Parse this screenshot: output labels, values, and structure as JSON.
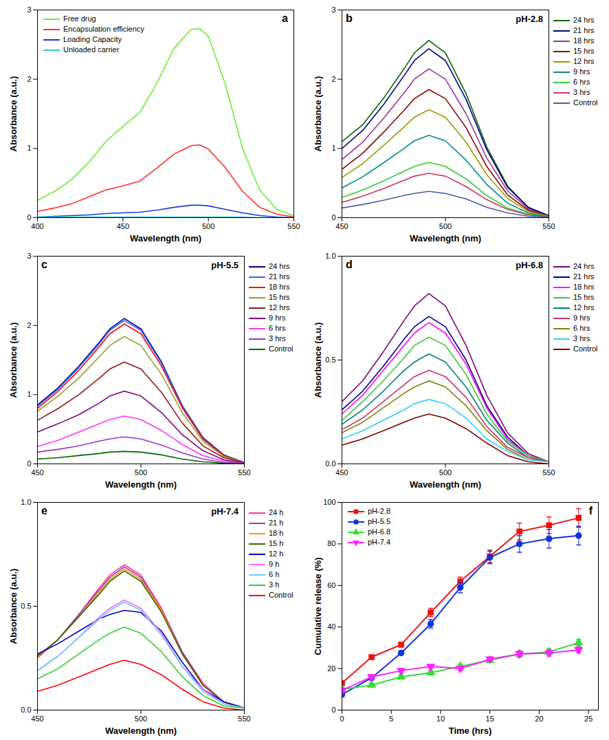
{
  "chart_data": [
    {
      "type": "line",
      "annotations": [
        "a"
      ],
      "xlabel": "Wavelength (nm)",
      "ylabel": "Absorbance (a.u.)",
      "x": [
        400,
        410,
        420,
        430,
        440,
        450,
        460,
        470,
        480,
        490,
        495,
        500,
        510,
        520,
        530,
        540,
        550
      ],
      "xlim": [
        400,
        550
      ],
      "xticks": [
        400,
        450,
        500,
        550
      ],
      "ylim": [
        0,
        3
      ],
      "yticks": [
        0,
        1,
        2,
        3
      ],
      "legend": "top-left",
      "series": [
        {
          "name": "Free drug",
          "color": "#66ee33",
          "values": [
            0.25,
            0.38,
            0.55,
            0.8,
            1.1,
            1.32,
            1.52,
            1.95,
            2.45,
            2.72,
            2.73,
            2.62,
            1.92,
            1.0,
            0.4,
            0.12,
            0.03
          ]
        },
        {
          "name": "Encapsulation efficiency",
          "color": "#ff3030",
          "values": [
            0.09,
            0.14,
            0.2,
            0.3,
            0.4,
            0.46,
            0.53,
            0.72,
            0.92,
            1.04,
            1.05,
            0.99,
            0.72,
            0.38,
            0.15,
            0.05,
            0.01
          ]
        },
        {
          "name": "Loading Capacity",
          "color": "#2233dd",
          "values": [
            0.01,
            0.02,
            0.03,
            0.04,
            0.06,
            0.07,
            0.08,
            0.11,
            0.15,
            0.18,
            0.18,
            0.17,
            0.12,
            0.07,
            0.03,
            0.01,
            0.0
          ]
        },
        {
          "name": "Unloaded carrier",
          "color": "#33cccc",
          "values": [
            0.01,
            0.01,
            0.01,
            0.01,
            0.01,
            0.01,
            0.01,
            0.01,
            0.01,
            0.01,
            0.01,
            0.01,
            0.01,
            0.01,
            0.0,
            0.0,
            0.0
          ]
        }
      ]
    },
    {
      "type": "line",
      "annotations": [
        "b"
      ],
      "title": "pH-2.8",
      "xlabel": "Wavelength (nm)",
      "ylabel": "Absorbance (a.u.)",
      "x": [
        450,
        460,
        470,
        480,
        485,
        492,
        500,
        510,
        520,
        530,
        540,
        550
      ],
      "xlim": [
        450,
        550
      ],
      "xticks": [
        450,
        500,
        550
      ],
      "ylim": [
        0,
        3
      ],
      "yticks": [
        0,
        1,
        2,
        3
      ],
      "legend": "right",
      "series": [
        {
          "name": "24 hrs",
          "color": "#006400",
          "values": [
            1.1,
            1.34,
            1.72,
            2.15,
            2.38,
            2.56,
            2.38,
            1.79,
            1.02,
            0.46,
            0.15,
            0.03
          ]
        },
        {
          "name": "21 hrs",
          "color": "#000080",
          "values": [
            1.0,
            1.26,
            1.63,
            2.05,
            2.27,
            2.44,
            2.27,
            1.71,
            0.98,
            0.44,
            0.15,
            0.03
          ]
        },
        {
          "name": "18 hrs",
          "color": "#993399",
          "values": [
            0.84,
            1.09,
            1.43,
            1.8,
            2.0,
            2.15,
            2.0,
            1.5,
            0.86,
            0.39,
            0.13,
            0.02
          ]
        },
        {
          "name": "15 hrs",
          "color": "#8b0000",
          "values": [
            0.7,
            0.93,
            1.23,
            1.55,
            1.72,
            1.85,
            1.72,
            1.3,
            0.74,
            0.33,
            0.11,
            0.02
          ]
        },
        {
          "name": "12 hrs",
          "color": "#999900",
          "values": [
            0.58,
            0.78,
            1.04,
            1.31,
            1.45,
            1.56,
            1.45,
            1.09,
            0.62,
            0.28,
            0.09,
            0.02
          ]
        },
        {
          "name": "9 hrs",
          "color": "#008b8b",
          "values": [
            0.43,
            0.59,
            0.79,
            1.0,
            1.11,
            1.19,
            1.11,
            0.83,
            0.48,
            0.21,
            0.07,
            0.01
          ]
        },
        {
          "name": "6 hrs",
          "color": "#33cc33",
          "values": [
            0.29,
            0.4,
            0.53,
            0.67,
            0.74,
            0.8,
            0.74,
            0.56,
            0.32,
            0.14,
            0.05,
            0.01
          ]
        },
        {
          "name": "3 hrs",
          "color": "#cc3366",
          "values": [
            0.22,
            0.31,
            0.42,
            0.54,
            0.6,
            0.64,
            0.6,
            0.45,
            0.26,
            0.12,
            0.04,
            0.01
          ]
        },
        {
          "name": "Control",
          "color": "#4b5ea8",
          "values": [
            0.14,
            0.19,
            0.25,
            0.32,
            0.35,
            0.38,
            0.35,
            0.27,
            0.15,
            0.07,
            0.02,
            0.01
          ]
        }
      ]
    },
    {
      "type": "line",
      "annotations": [
        "c"
      ],
      "title": "pH-5.5",
      "xlabel": "Wavelength (nm)",
      "ylabel": "Absorbance (a.u.)",
      "x": [
        450,
        460,
        470,
        480,
        485,
        492,
        500,
        510,
        520,
        530,
        540,
        550
      ],
      "xlim": [
        450,
        550
      ],
      "xticks": [
        450,
        500,
        550
      ],
      "ylim": [
        0,
        3
      ],
      "yticks": [
        0,
        1,
        2,
        3
      ],
      "legend": "right",
      "series": [
        {
          "name": "24 hrs",
          "color": "#000080",
          "values": [
            0.85,
            1.1,
            1.41,
            1.76,
            1.95,
            2.1,
            1.95,
            1.47,
            0.84,
            0.38,
            0.13,
            0.02
          ]
        },
        {
          "name": "21 hrs",
          "color": "#3366ff",
          "values": [
            0.83,
            1.08,
            1.39,
            1.74,
            1.93,
            2.07,
            1.93,
            1.45,
            0.83,
            0.37,
            0.12,
            0.02
          ]
        },
        {
          "name": "18 hrs",
          "color": "#ff0000",
          "values": [
            0.8,
            1.05,
            1.35,
            1.7,
            1.88,
            2.02,
            1.88,
            1.41,
            0.81,
            0.36,
            0.12,
            0.02
          ]
        },
        {
          "name": "15 hrs",
          "color": "#999933",
          "values": [
            0.76,
            0.98,
            1.24,
            1.55,
            1.71,
            1.84,
            1.71,
            1.29,
            0.74,
            0.33,
            0.11,
            0.02
          ]
        },
        {
          "name": "12 hrs",
          "color": "#8b1a1a",
          "values": [
            0.63,
            0.8,
            1.0,
            1.24,
            1.37,
            1.47,
            1.37,
            1.03,
            0.59,
            0.26,
            0.09,
            0.02
          ]
        },
        {
          "name": "9 hrs",
          "color": "#800080",
          "values": [
            0.46,
            0.58,
            0.71,
            0.88,
            0.98,
            1.05,
            0.98,
            0.74,
            0.42,
            0.19,
            0.06,
            0.01
          ]
        },
        {
          "name": "6 hrs",
          "color": "#ff33ff",
          "values": [
            0.25,
            0.34,
            0.46,
            0.58,
            0.64,
            0.69,
            0.64,
            0.48,
            0.28,
            0.12,
            0.04,
            0.01
          ]
        },
        {
          "name": "3 hrs",
          "color": "#9933cc",
          "values": [
            0.17,
            0.21,
            0.26,
            0.33,
            0.36,
            0.39,
            0.36,
            0.27,
            0.16,
            0.07,
            0.02,
            0.01
          ]
        },
        {
          "name": "Control",
          "color": "#006400",
          "values": [
            0.07,
            0.09,
            0.12,
            0.15,
            0.17,
            0.18,
            0.17,
            0.13,
            0.07,
            0.03,
            0.01,
            0.0
          ]
        }
      ]
    },
    {
      "type": "line",
      "annotations": [
        "d"
      ],
      "title": "pH-6.8",
      "xlabel": "Wavelength (nm)",
      "ylabel": "Absorbance (a.u.)",
      "x": [
        450,
        460,
        470,
        480,
        485,
        492,
        500,
        510,
        520,
        530,
        540,
        550
      ],
      "xlim": [
        450,
        550
      ],
      "xticks": [
        450,
        500,
        550
      ],
      "ylim": [
        0,
        1
      ],
      "yticks": [
        {
          "value": 0,
          "label": "0.0"
        },
        {
          "value": 0.5,
          "label": "0.5"
        },
        {
          "value": 1,
          "label": "1.0"
        }
      ],
      "legend": "right",
      "series": [
        {
          "name": "24 hrs",
          "color": "#800080",
          "values": [
            0.3,
            0.4,
            0.54,
            0.69,
            0.76,
            0.82,
            0.76,
            0.57,
            0.33,
            0.15,
            0.05,
            0.01
          ]
        },
        {
          "name": "21 hrs",
          "color": "#000080",
          "values": [
            0.26,
            0.35,
            0.47,
            0.6,
            0.66,
            0.71,
            0.66,
            0.5,
            0.28,
            0.13,
            0.04,
            0.01
          ]
        },
        {
          "name": "18 hrs",
          "color": "#ff00ff",
          "values": [
            0.24,
            0.33,
            0.45,
            0.57,
            0.63,
            0.68,
            0.63,
            0.48,
            0.27,
            0.12,
            0.04,
            0.01
          ]
        },
        {
          "name": "15 hrs",
          "color": "#33cc33",
          "values": [
            0.21,
            0.3,
            0.4,
            0.51,
            0.57,
            0.61,
            0.57,
            0.43,
            0.24,
            0.11,
            0.04,
            0.01
          ]
        },
        {
          "name": "12 hrs",
          "color": "#008080",
          "values": [
            0.19,
            0.26,
            0.35,
            0.45,
            0.49,
            0.53,
            0.49,
            0.37,
            0.21,
            0.1,
            0.03,
            0.01
          ]
        },
        {
          "name": "9 hrs",
          "color": "#cc3366",
          "values": [
            0.165,
            0.22,
            0.3,
            0.38,
            0.42,
            0.45,
            0.42,
            0.32,
            0.18,
            0.08,
            0.03,
            0.01
          ]
        },
        {
          "name": "6 hrs",
          "color": "#808000",
          "values": [
            0.15,
            0.2,
            0.27,
            0.34,
            0.37,
            0.4,
            0.37,
            0.28,
            0.16,
            0.07,
            0.02,
            0.01
          ]
        },
        {
          "name": "3 hrs",
          "color": "#33ccff",
          "values": [
            0.12,
            0.16,
            0.21,
            0.26,
            0.29,
            0.31,
            0.29,
            0.22,
            0.12,
            0.06,
            0.02,
            0.01
          ]
        },
        {
          "name": "Control",
          "color": "#800000",
          "values": [
            0.09,
            0.12,
            0.16,
            0.2,
            0.22,
            0.24,
            0.22,
            0.17,
            0.1,
            0.04,
            0.01,
            0.0
          ]
        }
      ]
    },
    {
      "type": "line",
      "annotations": [
        "e"
      ],
      "title": "pH-7.4",
      "xlabel": "Wavelength (nm)",
      "ylabel": "Absorbance (a.u.)",
      "x": [
        450,
        460,
        470,
        480,
        485,
        492,
        500,
        510,
        520,
        530,
        540,
        550
      ],
      "xlim": [
        450,
        550
      ],
      "xticks": [
        450,
        500,
        550
      ],
      "ylim": [
        0,
        1
      ],
      "yticks": [
        {
          "value": 0,
          "label": "0.0"
        },
        {
          "value": 0.5,
          "label": "0.5"
        },
        {
          "value": 1,
          "label": "1.0"
        }
      ],
      "legend": "right",
      "series": [
        {
          "name": "24 h",
          "color": "#ff3399",
          "values": [
            0.25,
            0.34,
            0.46,
            0.59,
            0.65,
            0.7,
            0.65,
            0.49,
            0.28,
            0.13,
            0.04,
            0.01
          ]
        },
        {
          "name": "21 h",
          "color": "#9933cc",
          "values": [
            0.255,
            0.34,
            0.46,
            0.58,
            0.64,
            0.69,
            0.64,
            0.48,
            0.28,
            0.12,
            0.04,
            0.01
          ]
        },
        {
          "name": "18 h",
          "color": "#ff9900",
          "values": [
            0.255,
            0.34,
            0.45,
            0.57,
            0.63,
            0.68,
            0.63,
            0.48,
            0.27,
            0.12,
            0.04,
            0.01
          ]
        },
        {
          "name": "15 h",
          "color": "#336600",
          "values": [
            0.26,
            0.34,
            0.45,
            0.56,
            0.62,
            0.67,
            0.62,
            0.47,
            0.27,
            0.12,
            0.04,
            0.01
          ]
        },
        {
          "name": "12 h",
          "color": "#0000cc",
          "values": [
            0.27,
            0.32,
            0.38,
            0.44,
            0.46,
            0.48,
            0.47,
            0.38,
            0.23,
            0.1,
            0.04,
            0.01
          ]
        },
        {
          "name": "9 h",
          "color": "#ff66ff",
          "values": [
            0.19,
            0.26,
            0.35,
            0.45,
            0.49,
            0.53,
            0.49,
            0.37,
            0.21,
            0.1,
            0.03,
            0.01
          ]
        },
        {
          "name": "6 h",
          "color": "#66ccff",
          "values": [
            0.19,
            0.26,
            0.35,
            0.44,
            0.48,
            0.52,
            0.48,
            0.36,
            0.21,
            0.09,
            0.03,
            0.01
          ]
        },
        {
          "name": "3 h",
          "color": "#33cc33",
          "values": [
            0.15,
            0.2,
            0.27,
            0.34,
            0.37,
            0.4,
            0.37,
            0.28,
            0.16,
            0.07,
            0.02,
            0.01
          ]
        },
        {
          "name": "Control",
          "color": "#ff0000",
          "values": [
            0.09,
            0.12,
            0.16,
            0.2,
            0.22,
            0.24,
            0.22,
            0.17,
            0.1,
            0.04,
            0.01,
            0.0
          ]
        }
      ]
    },
    {
      "type": "line",
      "annotations": [
        "f"
      ],
      "xlabel": "Time (hrs)",
      "ylabel": "Cumulative release (%)",
      "x": [
        0,
        3,
        6,
        9,
        12,
        15,
        18,
        21,
        24
      ],
      "xlim": [
        0,
        26
      ],
      "xticks": [
        0,
        5,
        10,
        15,
        20,
        25
      ],
      "ylim": [
        0,
        100
      ],
      "yticks": [
        0,
        20,
        40,
        60,
        80,
        100
      ],
      "legend": "top-left",
      "series": [
        {
          "name": "pH-2.8",
          "color": "#ee1111",
          "marker": "square",
          "values": [
            13,
            25.5,
            31.5,
            47,
            62,
            74,
            86,
            89,
            92.5
          ],
          "errors": [
            1,
            1,
            1,
            2,
            2,
            3,
            4,
            4,
            4.5
          ]
        },
        {
          "name": "pH-5.5",
          "color": "#1133dd",
          "marker": "circle",
          "values": [
            7.5,
            15.5,
            27.5,
            41.5,
            59,
            73.5,
            80,
            82.5,
            84
          ],
          "errors": [
            1,
            1,
            1,
            2,
            2.5,
            3,
            4,
            4.5,
            4.5
          ]
        },
        {
          "name": "pH-6.8",
          "color": "#33dd33",
          "marker": "triangle",
          "values": [
            10,
            12,
            16,
            18,
            21,
            24,
            27,
            28,
            32.5
          ],
          "errors": [
            1,
            1,
            1,
            1,
            1,
            1,
            1.5,
            1.5,
            1.5
          ]
        },
        {
          "name": "pH-7.4",
          "color": "#ff22ff",
          "marker": "triangle-down",
          "values": [
            9.5,
            16,
            19,
            21,
            20,
            24.5,
            27,
            27.5,
            29
          ],
          "errors": [
            1,
            1,
            1,
            1,
            1,
            1,
            1.5,
            1.5,
            1.5
          ]
        }
      ]
    }
  ]
}
